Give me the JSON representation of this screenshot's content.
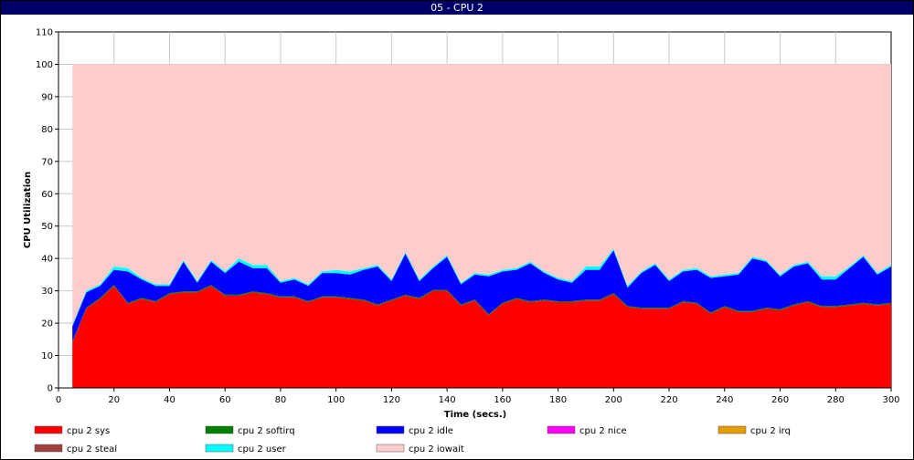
{
  "window": {
    "title": "05 - CPU 2"
  },
  "chart_data": {
    "type": "area",
    "stacked": true,
    "title": "05 - CPU 2",
    "xlabel": "Time (secs.)",
    "ylabel": "CPU Utilization",
    "xlim": [
      0,
      300
    ],
    "ylim": [
      0,
      110
    ],
    "x_ticks": [
      0,
      20,
      40,
      60,
      80,
      100,
      120,
      140,
      160,
      180,
      200,
      220,
      240,
      260,
      280,
      300
    ],
    "y_ticks": [
      0,
      10,
      20,
      30,
      40,
      50,
      60,
      70,
      80,
      90,
      100,
      110
    ],
    "grid": true,
    "legend_position": "bottom",
    "x": [
      5,
      10,
      15,
      20,
      25,
      30,
      35,
      40,
      45,
      50,
      55,
      60,
      65,
      70,
      75,
      80,
      85,
      90,
      95,
      100,
      105,
      110,
      115,
      120,
      125,
      130,
      135,
      140,
      145,
      150,
      155,
      160,
      165,
      170,
      175,
      180,
      185,
      190,
      195,
      200,
      205,
      210,
      215,
      220,
      225,
      230,
      235,
      240,
      245,
      250,
      255,
      260,
      265,
      270,
      275,
      280,
      285,
      290,
      295,
      300
    ],
    "series": [
      {
        "name": "cpu 2 sys",
        "color": "#ff0000",
        "values": [
          14,
          24.5,
          27.5,
          31.5,
          26,
          27.5,
          26.5,
          29,
          29.5,
          29.5,
          31.5,
          28.5,
          28.5,
          29.5,
          29,
          28,
          28,
          26.5,
          28,
          28,
          27.5,
          27,
          25.5,
          27,
          28.5,
          27.5,
          30,
          30,
          25.5,
          27,
          22.5,
          26,
          27.5,
          26.5,
          27,
          26.5,
          26.5,
          27,
          27,
          29,
          25,
          24.5,
          24.5,
          24.5,
          26.5,
          26,
          23,
          25,
          23.5,
          23.5,
          24.5,
          24,
          25.5,
          26.5,
          25,
          25,
          25.5,
          26,
          25.5,
          26
        ]
      },
      {
        "name": "cpu 2 softirq",
        "color": "#008000",
        "values": [
          0.3,
          0.3,
          0.3,
          0.3,
          0.3,
          0.3,
          0.3,
          0.3,
          0.3,
          0.3,
          0.3,
          0.3,
          0.3,
          0.3,
          0.3,
          0.3,
          0.3,
          0.3,
          0.3,
          0.3,
          0.3,
          0.3,
          0.3,
          0.3,
          0.3,
          0.3,
          0.3,
          0.3,
          0.3,
          0.3,
          0.3,
          0.3,
          0.3,
          0.3,
          0.3,
          0.3,
          0.3,
          0.3,
          0.3,
          0.3,
          0.3,
          0.3,
          0.3,
          0.3,
          0.3,
          0.3,
          0.3,
          0.3,
          0.3,
          0.3,
          0.3,
          0.3,
          0.3,
          0.3,
          0.3,
          0.3,
          0.3,
          0.3,
          0.3,
          0.3
        ]
      },
      {
        "name": "cpu 2 idle",
        "color": "#0000ff",
        "values": [
          4.7,
          4.7,
          3.7,
          4.7,
          9.7,
          5.7,
          4.7,
          2.2,
          9.2,
          2.7,
          7.2,
          6.7,
          10.2,
          7.2,
          7.7,
          4.2,
          5.2,
          4.7,
          7.2,
          7.2,
          7.2,
          9.2,
          11.7,
          5.7,
          12.7,
          5.2,
          6.7,
          10.2,
          6.2,
          7.7,
          11.7,
          9.7,
          8.7,
          11.7,
          8.2,
          6.7,
          5.7,
          9.2,
          9.2,
          13.2,
          5.7,
          10.7,
          13.2,
          8.2,
          9.2,
          10.2,
          10.7,
          9.2,
          11.2,
          16.2,
          14.2,
          10.2,
          11.7,
          11.7,
          8.2,
          8.2,
          11.2,
          14.2,
          9.2,
          11.2
        ]
      },
      {
        "name": "cpu 2 nice",
        "color": "#ff00ff",
        "values": [
          0,
          0,
          0,
          0,
          0,
          0,
          0,
          0,
          0,
          0,
          0,
          0,
          0,
          0,
          0,
          0,
          0,
          0,
          0,
          0,
          0,
          0,
          0,
          0,
          0,
          0,
          0,
          0,
          0,
          0,
          0,
          0,
          0,
          0,
          0,
          0,
          0,
          0,
          0,
          0,
          0,
          0,
          0,
          0,
          0,
          0,
          0,
          0,
          0,
          0,
          0,
          0,
          0,
          0,
          0,
          0,
          0,
          0,
          0,
          0
        ]
      },
      {
        "name": "cpu 2 irq",
        "color": "#e59d00",
        "values": [
          0,
          0,
          0,
          0,
          0,
          0,
          0,
          0,
          0,
          0,
          0,
          0,
          0,
          0,
          0,
          0,
          0,
          0,
          0,
          0,
          0,
          0,
          0,
          0,
          0,
          0,
          0,
          0,
          0,
          0,
          0,
          0,
          0,
          0,
          0,
          0,
          0,
          0,
          0,
          0,
          0,
          0,
          0,
          0,
          0,
          0,
          0,
          0,
          0,
          0,
          0,
          0,
          0,
          0,
          0,
          0,
          0,
          0,
          0,
          0
        ]
      },
      {
        "name": "cpu 2 steal",
        "color": "#a0403c",
        "values": [
          0,
          0,
          0,
          0,
          0,
          0,
          0,
          0,
          0,
          0,
          0,
          0,
          0,
          0,
          0,
          0,
          0,
          0,
          0,
          0,
          0,
          0,
          0,
          0,
          0,
          0,
          0,
          0,
          0,
          0,
          0,
          0,
          0,
          0,
          0,
          0,
          0,
          0,
          0,
          0,
          0,
          0,
          0,
          0,
          0,
          0,
          0,
          0,
          0,
          0,
          0,
          0,
          0,
          0,
          0,
          0,
          0,
          0,
          0,
          0
        ]
      },
      {
        "name": "cpu 2 user",
        "color": "#00ffff",
        "values": [
          0.5,
          0.5,
          0.5,
          1,
          1,
          0.5,
          0.5,
          0.5,
          0.5,
          0.5,
          0.5,
          0.5,
          1,
          1,
          1,
          0.5,
          0.5,
          0.5,
          0.5,
          1,
          1,
          0.5,
          0.5,
          0.5,
          0.5,
          0.5,
          0.5,
          0.5,
          0.5,
          0.5,
          0.5,
          0.5,
          0.5,
          0.5,
          0.5,
          0.5,
          0.5,
          1,
          1,
          0.5,
          0.5,
          0.5,
          0.5,
          0.5,
          0.5,
          0.5,
          0.5,
          0.5,
          0.5,
          0.5,
          0.5,
          0.5,
          0.5,
          0.5,
          1,
          1,
          0.5,
          0.5,
          0.5,
          0.5
        ]
      },
      {
        "name": "cpu 2 iowait",
        "color": "#ffcccc",
        "values": [
          80.5,
          70,
          68,
          62.5,
          63,
          66,
          68,
          68,
          60.5,
          67,
          60.5,
          64,
          60,
          62,
          62,
          67,
          66,
          68,
          64,
          63.5,
          64,
          63,
          62,
          66.5,
          58,
          66.5,
          62.5,
          59,
          67.5,
          64.5,
          65,
          63.5,
          63,
          61,
          64,
          66,
          67,
          62.5,
          62.5,
          57,
          68.5,
          64,
          61.5,
          66.5,
          63.5,
          63,
          65.5,
          65,
          64.5,
          59.5,
          60.5,
          65,
          62,
          61,
          65.5,
          65.5,
          62.5,
          59,
          64.5,
          62
        ]
      }
    ]
  }
}
